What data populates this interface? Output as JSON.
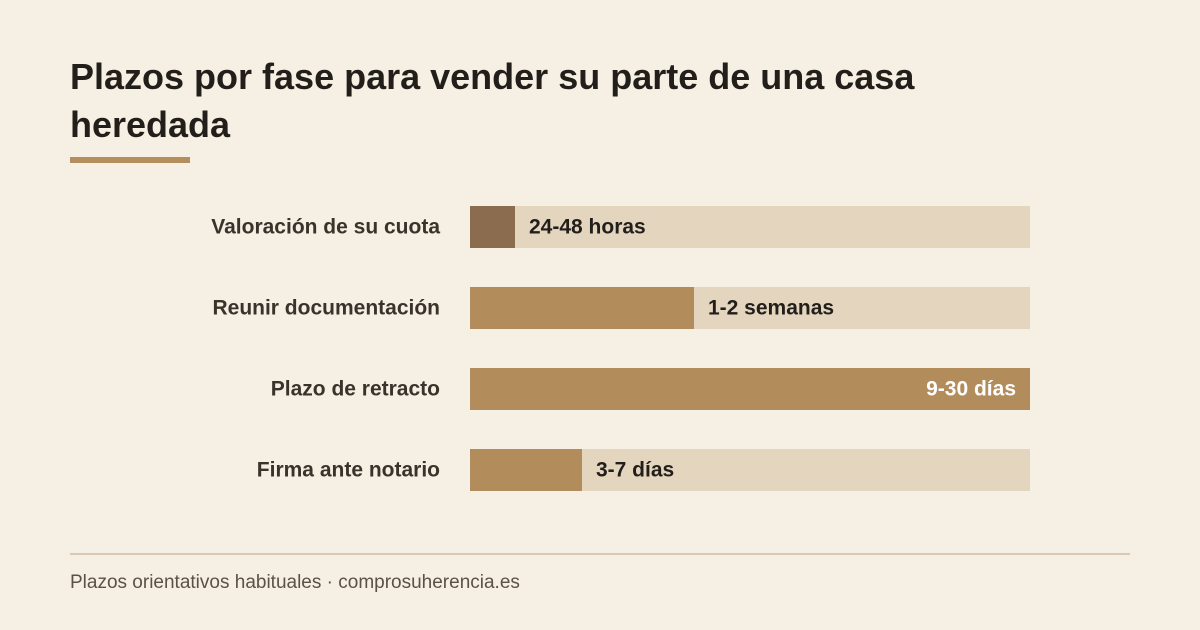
{
  "page": {
    "title": "Plazos por fase para vender su parte de una casa heredada",
    "footer": "Plazos orientativos habituales · comprosuherencia.es"
  },
  "colors": {
    "background": "#f6efe4",
    "track": "#e4d5bf",
    "bar_dark": "#8b6c4f",
    "bar": "#b38c5c",
    "accent_rule": "#b58e5e",
    "label_text": "#3a332c",
    "value_text": "#221e1a",
    "value_text_inside": "#ffffff"
  },
  "chart_data": {
    "type": "bar",
    "orientation": "horizontal",
    "categories": [
      "Valoración de su cuota",
      "Reunir documentación",
      "Plazo de retracto",
      "Firma ante notario"
    ],
    "values": [
      0.08,
      0.4,
      1.0,
      0.2
    ],
    "value_labels": [
      "24-48 horas",
      "1-2 semanas",
      "9-30 días",
      "3-7 días"
    ],
    "xlim": [
      0,
      1
    ],
    "grid": false,
    "legend": "none"
  }
}
